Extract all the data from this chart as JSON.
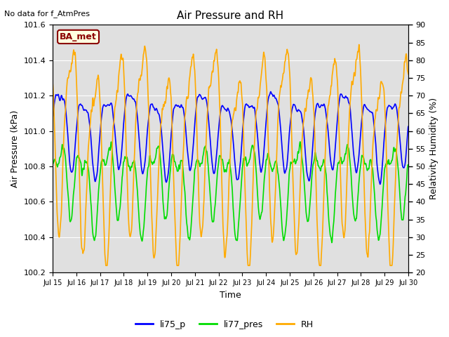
{
  "title": "Air Pressure and RH",
  "top_left_text": "No data for f_AtmPres",
  "box_label": "BA_met",
  "xlabel": "Time",
  "ylabel_left": "Air Pressure (kPa)",
  "ylabel_right": "Relativity Humidity (%)",
  "ylim_left": [
    100.2,
    101.6
  ],
  "ylim_right": [
    20,
    90
  ],
  "yticks_left": [
    100.2,
    100.4,
    100.6,
    100.8,
    101.0,
    101.2,
    101.4,
    101.6
  ],
  "yticks_right": [
    20,
    25,
    30,
    35,
    40,
    45,
    50,
    55,
    60,
    65,
    70,
    75,
    80,
    85,
    90
  ],
  "xtick_labels": [
    "Jul 15",
    "Jul 16",
    "Jul 17",
    "Jul 18",
    "Jul 19",
    "Jul 20",
    "Jul 21",
    "Jul 22",
    "Jul 23",
    "Jul 24",
    "Jul 25",
    "Jul 26",
    "Jul 27",
    "Jul 28",
    "Jul 29",
    "Jul 30"
  ],
  "color_blue": "#0000ff",
  "color_green": "#00dd00",
  "color_orange": "#ffaa00",
  "legend_labels": [
    "li75_p",
    "li77_pres",
    "RH"
  ],
  "background_color": "#ffffff",
  "plot_bg_color": "#e0e0e0",
  "grid_color": "#ffffff",
  "line_width": 1.2
}
